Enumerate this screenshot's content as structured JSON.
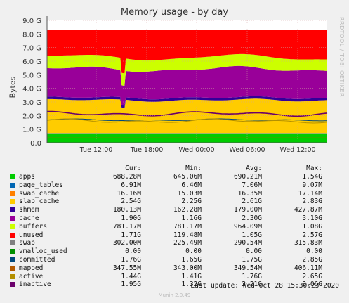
{
  "chart_data": {
    "type": "area",
    "title": "Memory usage - by day",
    "ylabel": "Bytes",
    "ylim": [
      0,
      9.0
    ],
    "y_unit": "G",
    "yticks": [
      "0.0",
      "1.0 G",
      "2.0 G",
      "3.0 G",
      "4.0 G",
      "5.0 G",
      "6.0 G",
      "7.0 G",
      "8.0 G",
      "9.0 G"
    ],
    "xticks": [
      "Tue 12:00",
      "Tue 18:00",
      "Wed 00:00",
      "Wed 06:00",
      "Wed 12:00"
    ],
    "side_text": "RRDTOOL / TOBI OETIKER",
    "columns": [
      "Cur:",
      "Min:",
      "Avg:",
      "Max:"
    ],
    "series": [
      {
        "name": "apps",
        "color": "#00cc00",
        "values": [
          "688.28M",
          "645.06M",
          "690.21M",
          "1.54G"
        ]
      },
      {
        "name": "page_tables",
        "color": "#0066b3",
        "values": [
          "6.91M",
          "6.46M",
          "7.06M",
          "9.07M"
        ]
      },
      {
        "name": "swap_cache",
        "color": "#ff8000",
        "values": [
          "16.16M",
          "15.03M",
          "16.35M",
          "17.14M"
        ]
      },
      {
        "name": "slab_cache",
        "color": "#ffcc00",
        "values": [
          "2.54G",
          "2.25G",
          "2.61G",
          "2.83G"
        ]
      },
      {
        "name": "shmem",
        "color": "#330099",
        "values": [
          "180.13M",
          "162.28M",
          "179.00M",
          "427.87M"
        ]
      },
      {
        "name": "cache",
        "color": "#990099",
        "values": [
          "1.90G",
          "1.16G",
          "2.30G",
          "3.10G"
        ]
      },
      {
        "name": "buffers",
        "color": "#ccff00",
        "values": [
          "781.17M",
          "781.17M",
          "964.09M",
          "1.08G"
        ]
      },
      {
        "name": "unused",
        "color": "#ff0000",
        "values": [
          "1.71G",
          "119.48M",
          "1.05G",
          "2.57G"
        ]
      },
      {
        "name": "swap",
        "color": "#808080",
        "values": [
          "302.00M",
          "225.49M",
          "290.54M",
          "315.83M"
        ]
      },
      {
        "name": "vmalloc_used",
        "color": "#008f00",
        "values": [
          "0.00",
          "0.00",
          "0.00",
          "0.00"
        ]
      },
      {
        "name": "committed",
        "color": "#00487d",
        "values": [
          "1.76G",
          "1.65G",
          "1.75G",
          "2.85G"
        ]
      },
      {
        "name": "mapped",
        "color": "#b35a00",
        "values": [
          "347.55M",
          "343.00M",
          "349.54M",
          "406.11M"
        ]
      },
      {
        "name": "active",
        "color": "#b38f00",
        "values": [
          "1.44G",
          "1.41G",
          "1.76G",
          "2.65G"
        ]
      },
      {
        "name": "inactive",
        "color": "#6b006b",
        "values": [
          "1.95G",
          "1.32G",
          "2.21G",
          "3.06G"
        ]
      }
    ],
    "profile": {
      "n": 200,
      "apps": 0.69,
      "page_tables": 0.007,
      "swap_cache": 0.016,
      "slab_cache": [
        2.3,
        2.54
      ],
      "shmem": 0.18,
      "cache": [
        1.9,
        2.3
      ],
      "buffers": [
        0.78,
        0.96
      ],
      "total": 8.0,
      "swap": 0.3,
      "committed": [
        1.6,
        1.76
      ],
      "mapped": 0.35,
      "active": [
        1.44,
        1.76
      ],
      "inactive": [
        1.95,
        2.3
      ]
    }
  },
  "legend_order": [
    "apps",
    "page_tables",
    "swap_cache",
    "slab_cache",
    "shmem",
    "cache",
    "buffers",
    "unused",
    "swap",
    "vmalloc_used",
    "committed",
    "mapped",
    "active",
    "inactive"
  ],
  "footer": {
    "last_update": "Last update: Wed Oct 28 15:30:23 2020",
    "munin": "Munin 2.0.49"
  }
}
